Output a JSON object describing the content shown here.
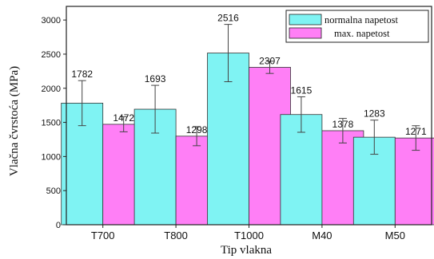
{
  "chart_data": {
    "type": "bar",
    "xlabel": "Tip vlakna",
    "ylabel": "Vlačna čvrstoća (MPa)",
    "ylim": [
      0,
      3200
    ],
    "yticks": [
      "0",
      "500",
      "1000",
      "1500",
      "2000",
      "2500",
      "3000"
    ],
    "categories": [
      "T700",
      "T800",
      "T1000",
      "M40",
      "M50"
    ],
    "legend_position": "top-right",
    "series": [
      {
        "name": "normalna napetost",
        "color": "#7ff3f3",
        "values": [
          1782,
          1693,
          2516,
          1615,
          1283
        ],
        "value_labels": [
          "1782",
          "1693",
          "2516",
          "1615",
          "1283"
        ],
        "error": [
          330,
          350,
          420,
          260,
          250
        ]
      },
      {
        "name": "max. napetost",
        "color": "#ff7ff6",
        "values": [
          1472,
          1298,
          2307,
          1378,
          1271
        ],
        "value_labels": [
          "1472",
          "1298",
          "2307",
          "1378",
          "1271"
        ],
        "error": [
          110,
          140,
          90,
          180,
          180
        ]
      }
    ]
  }
}
